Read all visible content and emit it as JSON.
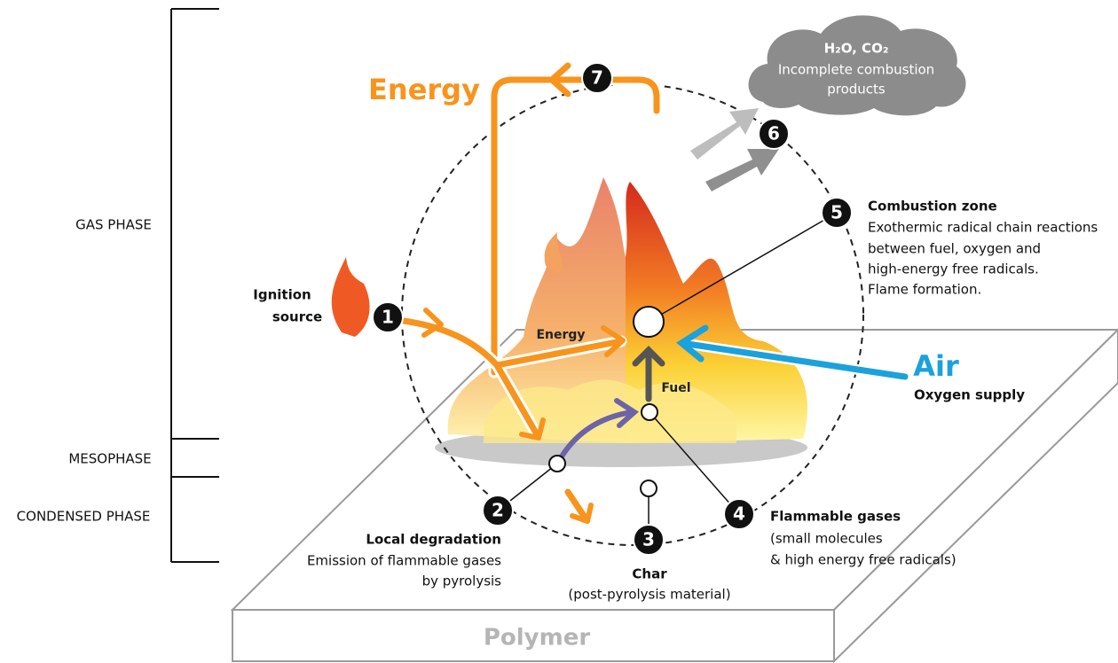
{
  "phases": [
    "GAS PHASE",
    "MESOPHASE",
    "CONDENSED PHASE"
  ],
  "energy_title": "Energy",
  "cloud": {
    "lines": [
      "H₂O, CO₂",
      "Incomplete combustion",
      "products"
    ]
  },
  "ignition": {
    "lines": [
      "Ignition",
      "source"
    ]
  },
  "inner": {
    "energy": "Energy",
    "fuel": "Fuel"
  },
  "air": {
    "title": "Air",
    "subtitle": "Oxygen supply"
  },
  "polymer": "Polymer",
  "steps": [
    {
      "number": 1
    },
    {
      "number": 2,
      "title": "Local degradation",
      "lines": [
        "Emission of flammable gases",
        "by pyrolysis"
      ]
    },
    {
      "number": 3,
      "title": "Char",
      "lines": [
        "(post-pyrolysis material)"
      ]
    },
    {
      "number": 4,
      "title": "Flammable gases",
      "lines": [
        "(small molecules",
        "& high energy free radicals)"
      ]
    },
    {
      "number": 5,
      "title": "Combustion zone",
      "lines": [
        "Exothermic radical chain reactions",
        "between fuel, oxygen and",
        "high-energy free radicals.",
        "Flame formation."
      ]
    },
    {
      "number": 6
    },
    {
      "number": 7
    }
  ]
}
